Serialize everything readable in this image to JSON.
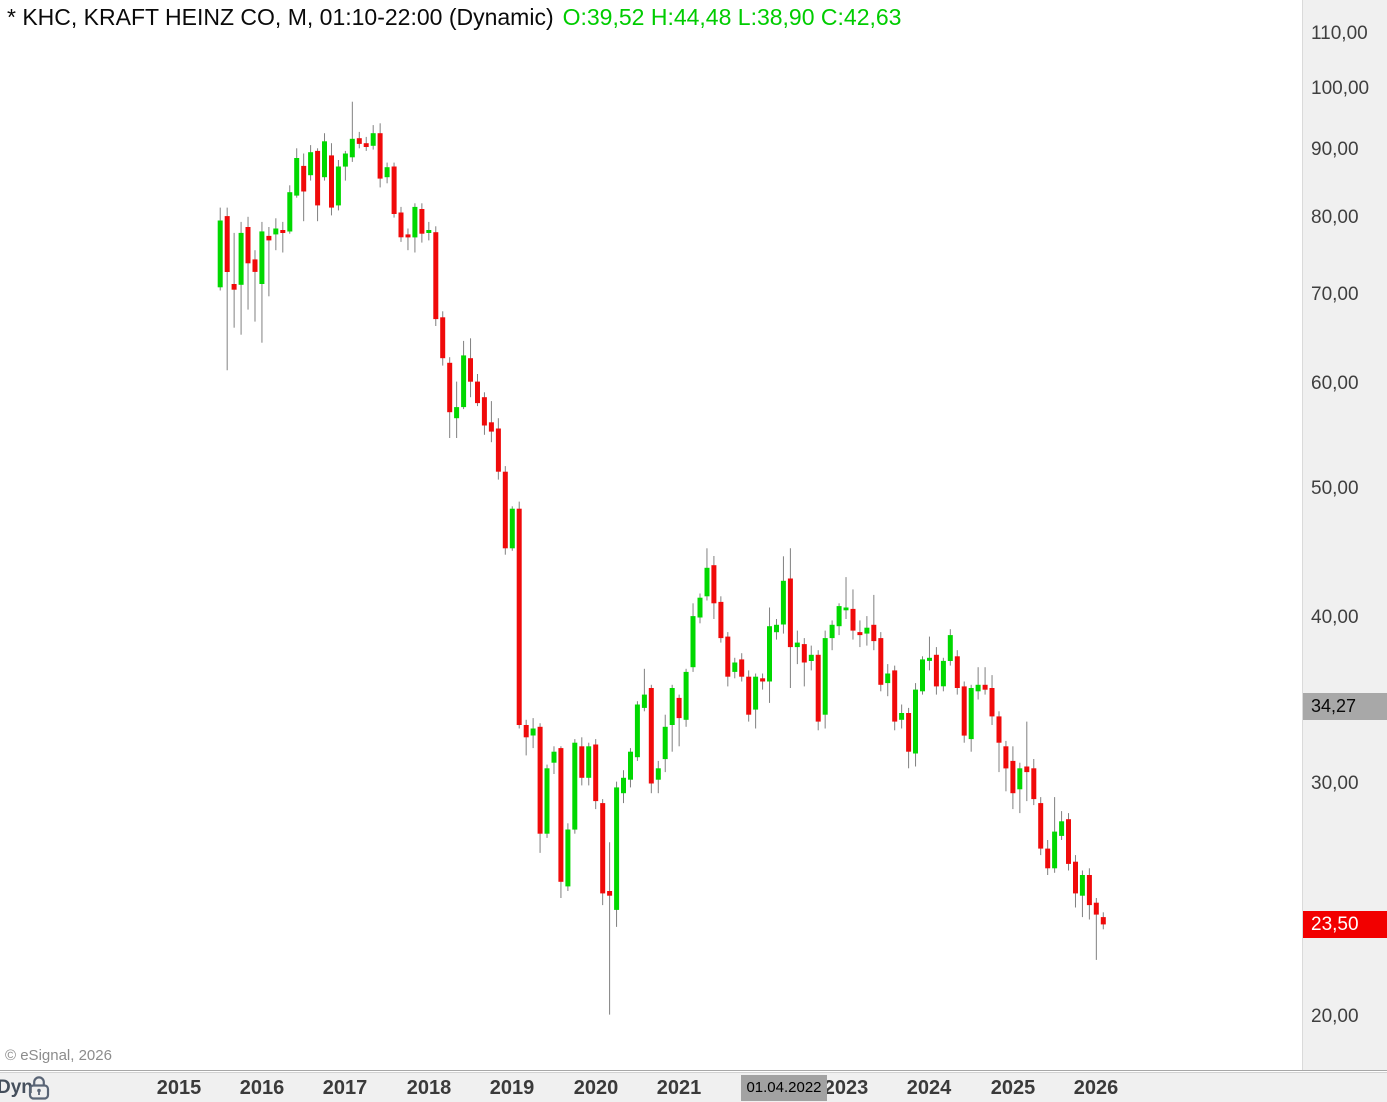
{
  "window": {
    "title_symbol": "* KHC, KRAFT HEINZ CO, M, 01:10-22:00 (Dynamic)",
    "title_ohlc": "O:39,52 H:44,48 L:38,90 C:42,63"
  },
  "copyright": "© eSignal, 2026",
  "colors": {
    "up": "#00d800",
    "down": "#f00a0a",
    "wick": "#808080",
    "title_ohlc": "#00cc00",
    "last_badge_bg": "#f20000",
    "last_badge_text": "#ffffff",
    "cursor_badge_bg": "#a8a8a8",
    "axis_bg": "#f0f0f0"
  },
  "y_axis": {
    "labels": [
      {
        "text": "110,00",
        "value": 110
      },
      {
        "text": "100,00",
        "value": 100
      },
      {
        "text": "90,00",
        "value": 90
      },
      {
        "text": "80,00",
        "value": 80
      },
      {
        "text": "70,00",
        "value": 70
      },
      {
        "text": "60,00",
        "value": 60
      },
      {
        "text": "50,00",
        "value": 50
      },
      {
        "text": "40,00",
        "value": 40
      },
      {
        "text": "30,00",
        "value": 30
      },
      {
        "text": "20,00",
        "value": 20
      }
    ]
  },
  "last_price": {
    "label": "23,50",
    "value": 23.5
  },
  "cursor": {
    "date_label": "01.04.2022",
    "month": "2022-04",
    "price_label": "34,27",
    "price": 34.27
  },
  "bottom_bar": {
    "mode_label": "Dyn",
    "lock_icon": "lock-icon",
    "years": [
      "2015",
      "2016",
      "2017",
      "2018",
      "2019",
      "2020",
      "2021",
      "2022",
      "2023",
      "2024",
      "2025",
      "2026"
    ]
  },
  "chart_data": {
    "type": "candlestick",
    "symbol": "KHC",
    "name": "KRAFT HEINZ CO",
    "timeframe": "M",
    "session": "01:10-22:00",
    "mode": "Dynamic",
    "scale": "logarithmic",
    "ylim": [
      19,
      113
    ],
    "grid": false,
    "candles": [
      {
        "t": "2015-07",
        "o": 70.9,
        "h": 81.4,
        "l": 70.5,
        "c": 79.6
      },
      {
        "t": "2015-08",
        "o": 80.2,
        "h": 81.4,
        "l": 61.4,
        "c": 72.8
      },
      {
        "t": "2015-09",
        "o": 71.3,
        "h": 77.9,
        "l": 66.1,
        "c": 70.6
      },
      {
        "t": "2015-10",
        "o": 71.2,
        "h": 79.4,
        "l": 65.3,
        "c": 77.9
      },
      {
        "t": "2015-11",
        "o": 78.7,
        "h": 80.1,
        "l": 68.2,
        "c": 73.9
      },
      {
        "t": "2015-12",
        "o": 74.4,
        "h": 75.6,
        "l": 66.8,
        "c": 72.8
      },
      {
        "t": "2016-01",
        "o": 71.3,
        "h": 79.4,
        "l": 64.4,
        "c": 78.1
      },
      {
        "t": "2016-02",
        "o": 77.5,
        "h": 78.7,
        "l": 69.8,
        "c": 76.9
      },
      {
        "t": "2016-03",
        "o": 77.7,
        "h": 79.9,
        "l": 75.6,
        "c": 78.5
      },
      {
        "t": "2016-04",
        "o": 78.3,
        "h": 79.4,
        "l": 75.3,
        "c": 77.9
      },
      {
        "t": "2016-05",
        "o": 78.1,
        "h": 84.6,
        "l": 77.8,
        "c": 83.6
      },
      {
        "t": "2016-06",
        "o": 83.1,
        "h": 90.2,
        "l": 82.8,
        "c": 88.7
      },
      {
        "t": "2016-07",
        "o": 87.5,
        "h": 89.4,
        "l": 79.5,
        "c": 83.7
      },
      {
        "t": "2016-08",
        "o": 86.1,
        "h": 90.7,
        "l": 85.3,
        "c": 89.6
      },
      {
        "t": "2016-09",
        "o": 89.8,
        "h": 90.2,
        "l": 79.5,
        "c": 81.7
      },
      {
        "t": "2016-10",
        "o": 85.8,
        "h": 92.6,
        "l": 85.3,
        "c": 91.3
      },
      {
        "t": "2016-11",
        "o": 89.1,
        "h": 91.0,
        "l": 80.3,
        "c": 81.4
      },
      {
        "t": "2016-12",
        "o": 81.7,
        "h": 88.4,
        "l": 81.0,
        "c": 87.4
      },
      {
        "t": "2017-01",
        "o": 87.4,
        "h": 89.8,
        "l": 85.3,
        "c": 89.4
      },
      {
        "t": "2017-02",
        "o": 88.8,
        "h": 97.8,
        "l": 88.1,
        "c": 91.7
      },
      {
        "t": "2017-03",
        "o": 91.8,
        "h": 92.8,
        "l": 90.2,
        "c": 90.9
      },
      {
        "t": "2017-04",
        "o": 91.0,
        "h": 92.0,
        "l": 89.8,
        "c": 90.4
      },
      {
        "t": "2017-05",
        "o": 90.6,
        "h": 93.9,
        "l": 90.0,
        "c": 92.6
      },
      {
        "t": "2017-06",
        "o": 92.6,
        "h": 94.2,
        "l": 84.3,
        "c": 85.6
      },
      {
        "t": "2017-07",
        "o": 85.8,
        "h": 88.0,
        "l": 84.9,
        "c": 87.3
      },
      {
        "t": "2017-08",
        "o": 87.4,
        "h": 88.0,
        "l": 80.0,
        "c": 80.5
      },
      {
        "t": "2017-09",
        "o": 80.7,
        "h": 81.5,
        "l": 76.7,
        "c": 77.3
      },
      {
        "t": "2017-10",
        "o": 77.7,
        "h": 78.5,
        "l": 75.6,
        "c": 77.3
      },
      {
        "t": "2017-11",
        "o": 77.3,
        "h": 82.0,
        "l": 75.3,
        "c": 81.5
      },
      {
        "t": "2017-12",
        "o": 81.2,
        "h": 82.0,
        "l": 76.6,
        "c": 77.8
      },
      {
        "t": "2018-01",
        "o": 77.9,
        "h": 79.4,
        "l": 76.9,
        "c": 78.3
      },
      {
        "t": "2018-02",
        "o": 78.0,
        "h": 78.8,
        "l": 66.3,
        "c": 67.1
      },
      {
        "t": "2018-03",
        "o": 67.3,
        "h": 68.0,
        "l": 61.9,
        "c": 62.7
      },
      {
        "t": "2018-04",
        "o": 62.2,
        "h": 62.8,
        "l": 54.6,
        "c": 57.1
      },
      {
        "t": "2018-05",
        "o": 56.5,
        "h": 60.2,
        "l": 54.6,
        "c": 57.6
      },
      {
        "t": "2018-06",
        "o": 57.6,
        "h": 64.6,
        "l": 57.4,
        "c": 63.0
      },
      {
        "t": "2018-07",
        "o": 62.7,
        "h": 64.9,
        "l": 58.6,
        "c": 60.2
      },
      {
        "t": "2018-08",
        "o": 60.2,
        "h": 61.0,
        "l": 57.7,
        "c": 58.0
      },
      {
        "t": "2018-09",
        "o": 58.6,
        "h": 59.1,
        "l": 54.9,
        "c": 55.8
      },
      {
        "t": "2018-10",
        "o": 56.1,
        "h": 58.2,
        "l": 54.2,
        "c": 55.2
      },
      {
        "t": "2018-11",
        "o": 55.5,
        "h": 56.5,
        "l": 50.8,
        "c": 51.5
      },
      {
        "t": "2018-12",
        "o": 51.5,
        "h": 52.0,
        "l": 44.6,
        "c": 45.1
      },
      {
        "t": "2019-01",
        "o": 45.1,
        "h": 48.5,
        "l": 44.9,
        "c": 48.3
      },
      {
        "t": "2019-02",
        "o": 48.3,
        "h": 48.9,
        "l": 33.0,
        "c": 33.2
      },
      {
        "t": "2019-03",
        "o": 33.2,
        "h": 33.5,
        "l": 31.5,
        "c": 32.5
      },
      {
        "t": "2019-04",
        "o": 32.6,
        "h": 33.6,
        "l": 31.9,
        "c": 33.0
      },
      {
        "t": "2019-05",
        "o": 33.1,
        "h": 33.3,
        "l": 26.6,
        "c": 27.5
      },
      {
        "t": "2019-06",
        "o": 27.5,
        "h": 31.0,
        "l": 27.3,
        "c": 30.8
      },
      {
        "t": "2019-07",
        "o": 31.1,
        "h": 32.0,
        "l": 30.5,
        "c": 31.7
      },
      {
        "t": "2019-08",
        "o": 31.9,
        "h": 32.0,
        "l": 24.6,
        "c": 25.3
      },
      {
        "t": "2019-09",
        "o": 25.1,
        "h": 28.0,
        "l": 24.9,
        "c": 27.7
      },
      {
        "t": "2019-10",
        "o": 27.7,
        "h": 32.4,
        "l": 27.5,
        "c": 32.2
      },
      {
        "t": "2019-11",
        "o": 32.0,
        "h": 32.5,
        "l": 29.9,
        "c": 30.3
      },
      {
        "t": "2019-12",
        "o": 30.3,
        "h": 32.2,
        "l": 29.9,
        "c": 32.0
      },
      {
        "t": "2020-01",
        "o": 32.1,
        "h": 32.4,
        "l": 28.7,
        "c": 29.1
      },
      {
        "t": "2020-02",
        "o": 29.0,
        "h": 29.2,
        "l": 24.3,
        "c": 24.8
      },
      {
        "t": "2020-03",
        "o": 24.9,
        "h": 27.1,
        "l": 20.1,
        "c": 24.7
      },
      {
        "t": "2020-04",
        "o": 24.1,
        "h": 30.1,
        "l": 23.4,
        "c": 29.8
      },
      {
        "t": "2020-05",
        "o": 29.5,
        "h": 30.7,
        "l": 29.0,
        "c": 30.3
      },
      {
        "t": "2020-06",
        "o": 30.2,
        "h": 31.9,
        "l": 29.8,
        "c": 31.7
      },
      {
        "t": "2020-07",
        "o": 31.4,
        "h": 34.6,
        "l": 31.2,
        "c": 34.4
      },
      {
        "t": "2020-08",
        "o": 34.2,
        "h": 36.6,
        "l": 34.0,
        "c": 35.0
      },
      {
        "t": "2020-09",
        "o": 35.4,
        "h": 35.6,
        "l": 29.5,
        "c": 30.0
      },
      {
        "t": "2020-10",
        "o": 30.2,
        "h": 31.2,
        "l": 29.5,
        "c": 30.8
      },
      {
        "t": "2020-11",
        "o": 31.3,
        "h": 33.8,
        "l": 30.6,
        "c": 33.1
      },
      {
        "t": "2020-12",
        "o": 33.2,
        "h": 35.6,
        "l": 31.7,
        "c": 35.4
      },
      {
        "t": "2021-01",
        "o": 34.8,
        "h": 35.0,
        "l": 32.0,
        "c": 33.6
      },
      {
        "t": "2021-02",
        "o": 33.5,
        "h": 36.6,
        "l": 33.1,
        "c": 36.4
      },
      {
        "t": "2021-03",
        "o": 36.7,
        "h": 41.0,
        "l": 36.4,
        "c": 40.1
      },
      {
        "t": "2021-04",
        "o": 40.0,
        "h": 41.7,
        "l": 39.6,
        "c": 41.4
      },
      {
        "t": "2021-05",
        "o": 41.5,
        "h": 45.1,
        "l": 41.2,
        "c": 43.6
      },
      {
        "t": "2021-06",
        "o": 43.8,
        "h": 44.5,
        "l": 39.9,
        "c": 41.0
      },
      {
        "t": "2021-07",
        "o": 41.1,
        "h": 41.5,
        "l": 38.3,
        "c": 38.6
      },
      {
        "t": "2021-08",
        "o": 38.7,
        "h": 39.0,
        "l": 35.5,
        "c": 36.1
      },
      {
        "t": "2021-09",
        "o": 36.4,
        "h": 37.3,
        "l": 36.0,
        "c": 37.0
      },
      {
        "t": "2021-10",
        "o": 37.2,
        "h": 37.6,
        "l": 35.8,
        "c": 36.1
      },
      {
        "t": "2021-11",
        "o": 36.1,
        "h": 36.5,
        "l": 33.4,
        "c": 33.8
      },
      {
        "t": "2021-12",
        "o": 34.1,
        "h": 36.3,
        "l": 33.0,
        "c": 36.1
      },
      {
        "t": "2022-01",
        "o": 36.0,
        "h": 36.3,
        "l": 35.3,
        "c": 35.8
      },
      {
        "t": "2022-02",
        "o": 35.8,
        "h": 40.7,
        "l": 34.5,
        "c": 39.4
      },
      {
        "t": "2022-03",
        "o": 39.0,
        "h": 39.9,
        "l": 38.5,
        "c": 39.5
      },
      {
        "t": "2022-04",
        "o": 39.52,
        "h": 44.48,
        "l": 38.9,
        "c": 42.63
      },
      {
        "t": "2022-05",
        "o": 42.8,
        "h": 45.1,
        "l": 35.4,
        "c": 38.0
      },
      {
        "t": "2022-06",
        "o": 38.0,
        "h": 39.1,
        "l": 36.9,
        "c": 38.3
      },
      {
        "t": "2022-07",
        "o": 38.2,
        "h": 38.6,
        "l": 35.5,
        "c": 37.0
      },
      {
        "t": "2022-08",
        "o": 37.1,
        "h": 38.1,
        "l": 36.5,
        "c": 37.5
      },
      {
        "t": "2022-09",
        "o": 37.5,
        "h": 37.8,
        "l": 32.9,
        "c": 33.4
      },
      {
        "t": "2022-10",
        "o": 33.8,
        "h": 39.1,
        "l": 33.0,
        "c": 38.6
      },
      {
        "t": "2022-11",
        "o": 38.6,
        "h": 39.8,
        "l": 37.8,
        "c": 39.5
      },
      {
        "t": "2022-12",
        "o": 39.4,
        "h": 41.0,
        "l": 38.8,
        "c": 40.8
      },
      {
        "t": "2023-01",
        "o": 40.5,
        "h": 42.9,
        "l": 39.9,
        "c": 40.7
      },
      {
        "t": "2023-02",
        "o": 40.6,
        "h": 42.0,
        "l": 38.5,
        "c": 39.1
      },
      {
        "t": "2023-03",
        "o": 39.0,
        "h": 39.8,
        "l": 38.0,
        "c": 38.8
      },
      {
        "t": "2023-04",
        "o": 38.9,
        "h": 40.1,
        "l": 38.1,
        "c": 39.3
      },
      {
        "t": "2023-05",
        "o": 39.5,
        "h": 41.6,
        "l": 37.8,
        "c": 38.4
      },
      {
        "t": "2023-06",
        "o": 38.6,
        "h": 39.0,
        "l": 35.2,
        "c": 35.6
      },
      {
        "t": "2023-07",
        "o": 35.7,
        "h": 36.9,
        "l": 34.9,
        "c": 36.3
      },
      {
        "t": "2023-08",
        "o": 36.5,
        "h": 36.8,
        "l": 32.9,
        "c": 33.4
      },
      {
        "t": "2023-09",
        "o": 33.5,
        "h": 34.4,
        "l": 33.0,
        "c": 33.9
      },
      {
        "t": "2023-10",
        "o": 33.9,
        "h": 34.2,
        "l": 30.8,
        "c": 31.7
      },
      {
        "t": "2023-11",
        "o": 31.6,
        "h": 35.7,
        "l": 30.9,
        "c": 35.3
      },
      {
        "t": "2023-12",
        "o": 35.2,
        "h": 37.4,
        "l": 35.0,
        "c": 37.2
      },
      {
        "t": "2024-01",
        "o": 37.1,
        "h": 38.7,
        "l": 36.5,
        "c": 37.3
      },
      {
        "t": "2024-02",
        "o": 37.5,
        "h": 38.0,
        "l": 35.0,
        "c": 35.5
      },
      {
        "t": "2024-03",
        "o": 35.5,
        "h": 37.3,
        "l": 35.2,
        "c": 37.1
      },
      {
        "t": "2024-04",
        "o": 37.1,
        "h": 39.2,
        "l": 36.8,
        "c": 38.8
      },
      {
        "t": "2024-05",
        "o": 37.4,
        "h": 37.8,
        "l": 35.0,
        "c": 35.4
      },
      {
        "t": "2024-06",
        "o": 35.5,
        "h": 35.8,
        "l": 32.2,
        "c": 32.6
      },
      {
        "t": "2024-07",
        "o": 32.4,
        "h": 35.6,
        "l": 31.7,
        "c": 35.4
      },
      {
        "t": "2024-08",
        "o": 35.2,
        "h": 36.7,
        "l": 34.7,
        "c": 35.6
      },
      {
        "t": "2024-09",
        "o": 35.6,
        "h": 36.7,
        "l": 35.0,
        "c": 35.3
      },
      {
        "t": "2024-10",
        "o": 35.4,
        "h": 36.2,
        "l": 33.2,
        "c": 33.7
      },
      {
        "t": "2024-11",
        "o": 33.7,
        "h": 34.0,
        "l": 30.6,
        "c": 32.2
      },
      {
        "t": "2024-12",
        "o": 32.0,
        "h": 32.3,
        "l": 29.6,
        "c": 30.8
      },
      {
        "t": "2025-01",
        "o": 31.2,
        "h": 32.0,
        "l": 28.7,
        "c": 29.5
      },
      {
        "t": "2025-02",
        "o": 29.7,
        "h": 31.1,
        "l": 28.5,
        "c": 30.8
      },
      {
        "t": "2025-03",
        "o": 30.9,
        "h": 33.4,
        "l": 29.1,
        "c": 30.6
      },
      {
        "t": "2025-04",
        "o": 30.8,
        "h": 31.3,
        "l": 28.9,
        "c": 29.2
      },
      {
        "t": "2025-05",
        "o": 29.0,
        "h": 29.3,
        "l": 26.5,
        "c": 26.8
      },
      {
        "t": "2025-06",
        "o": 26.8,
        "h": 27.2,
        "l": 25.6,
        "c": 25.9
      },
      {
        "t": "2025-07",
        "o": 25.9,
        "h": 29.3,
        "l": 25.7,
        "c": 27.6
      },
      {
        "t": "2025-08",
        "o": 27.4,
        "h": 28.6,
        "l": 27.2,
        "c": 28.1
      },
      {
        "t": "2025-09",
        "o": 28.2,
        "h": 28.5,
        "l": 25.8,
        "c": 26.1
      },
      {
        "t": "2025-10",
        "o": 26.2,
        "h": 26.5,
        "l": 24.2,
        "c": 24.8
      },
      {
        "t": "2025-11",
        "o": 24.7,
        "h": 25.8,
        "l": 23.8,
        "c": 25.6
      },
      {
        "t": "2025-12",
        "o": 25.6,
        "h": 25.9,
        "l": 23.7,
        "c": 24.3
      },
      {
        "t": "2026-01",
        "o": 24.4,
        "h": 24.6,
        "l": 22.1,
        "c": 23.9
      },
      {
        "t": "2026-02",
        "o": 23.8,
        "h": 24.0,
        "l": 23.3,
        "c": 23.5
      }
    ]
  }
}
